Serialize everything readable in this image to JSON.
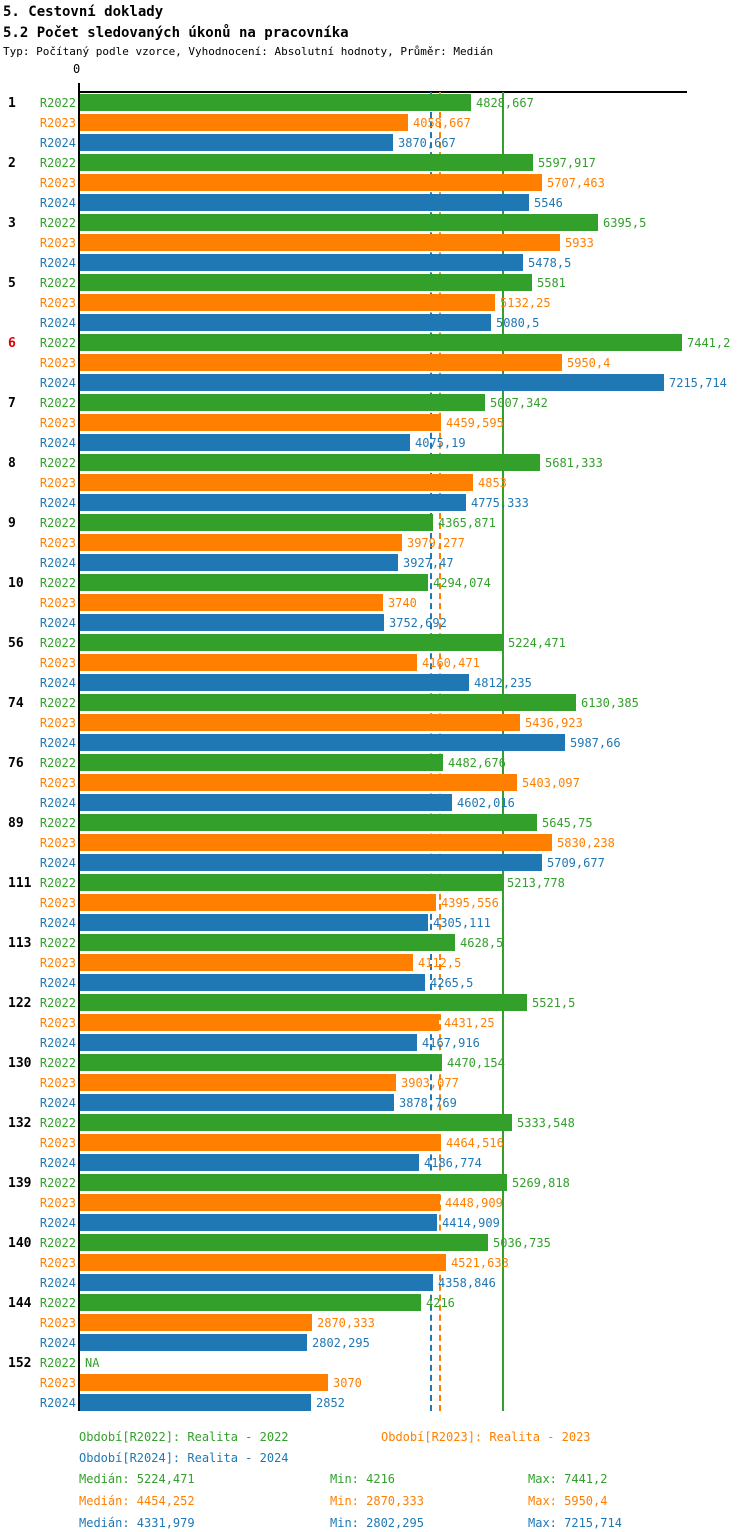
{
  "header": {
    "title": "5. Cestovní doklady",
    "subtitle": "5.2 Počet sledovaných úkonů na pracovníka",
    "meta": "Typ: Počítaný podle vzorce, Vyhodnocení: Absolutní hodnoty, Průměr: Medián"
  },
  "axis": {
    "zero_label": "0",
    "max": 7500
  },
  "colors": {
    "r2022": "#33A02C",
    "r2023": "#FF7F00",
    "r2024": "#1F78B4",
    "highlight_group": "#DD0000",
    "axis": "#000000"
  },
  "medians": [
    {
      "series": "R2022",
      "value": 5224.471,
      "color": "#33A02C",
      "style": "solid"
    },
    {
      "series": "R2023",
      "value": 4454.252,
      "color": "#FF7F00",
      "style": "dashed"
    },
    {
      "series": "R2024",
      "value": 4331.979,
      "color": "#1F78B4",
      "style": "dashed"
    }
  ],
  "groups": [
    {
      "id": "1",
      "highlight": false,
      "bars": [
        {
          "series": "R2022",
          "label": "4828,667",
          "value": 4828.667
        },
        {
          "series": "R2023",
          "label": "4058,667",
          "value": 4058.667
        },
        {
          "series": "R2024",
          "label": "3870,667",
          "value": 3870.667
        }
      ]
    },
    {
      "id": "2",
      "highlight": false,
      "bars": [
        {
          "series": "R2022",
          "label": "5597,917",
          "value": 5597.917
        },
        {
          "series": "R2023",
          "label": "5707,463",
          "value": 5707.463
        },
        {
          "series": "R2024",
          "label": "5546",
          "value": 5546
        }
      ]
    },
    {
      "id": "3",
      "highlight": false,
      "bars": [
        {
          "series": "R2022",
          "label": "6395,5",
          "value": 6395.5
        },
        {
          "series": "R2023",
          "label": "5933",
          "value": 5933
        },
        {
          "series": "R2024",
          "label": "5478,5",
          "value": 5478.5
        }
      ]
    },
    {
      "id": "5",
      "highlight": false,
      "bars": [
        {
          "series": "R2022",
          "label": "5581",
          "value": 5581
        },
        {
          "series": "R2023",
          "label": "5132,25",
          "value": 5132.25
        },
        {
          "series": "R2024",
          "label": "5080,5",
          "value": 5080.5
        }
      ]
    },
    {
      "id": "6",
      "highlight": true,
      "bars": [
        {
          "series": "R2022",
          "label": "7441,2",
          "value": 7441.2
        },
        {
          "series": "R2023",
          "label": "5950,4",
          "value": 5950.4
        },
        {
          "series": "R2024",
          "label": "7215,714",
          "value": 7215.714
        }
      ]
    },
    {
      "id": "7",
      "highlight": false,
      "bars": [
        {
          "series": "R2022",
          "label": "5007,342",
          "value": 5007.342
        },
        {
          "series": "R2023",
          "label": "4459,595",
          "value": 4459.595
        },
        {
          "series": "R2024",
          "label": "4075,19",
          "value": 4075.19
        }
      ]
    },
    {
      "id": "8",
      "highlight": false,
      "bars": [
        {
          "series": "R2022",
          "label": "5681,333",
          "value": 5681.333
        },
        {
          "series": "R2023",
          "label": "4853",
          "value": 4853
        },
        {
          "series": "R2024",
          "label": "4775,333",
          "value": 4775.333
        }
      ]
    },
    {
      "id": "9",
      "highlight": false,
      "bars": [
        {
          "series": "R2022",
          "label": "4365,871",
          "value": 4365.871
        },
        {
          "series": "R2023",
          "label": "3979,277",
          "value": 3979.277
        },
        {
          "series": "R2024",
          "label": "3927,47",
          "value": 3927.47
        }
      ]
    },
    {
      "id": "10",
      "highlight": false,
      "bars": [
        {
          "series": "R2022",
          "label": "4294,074",
          "value": 4294.074
        },
        {
          "series": "R2023",
          "label": "3740",
          "value": 3740
        },
        {
          "series": "R2024",
          "label": "3752,692",
          "value": 3752.692
        }
      ]
    },
    {
      "id": "56",
      "highlight": false,
      "bars": [
        {
          "series": "R2022",
          "label": "5224,471",
          "value": 5224.471
        },
        {
          "series": "R2023",
          "label": "4160,471",
          "value": 4160.471
        },
        {
          "series": "R2024",
          "label": "4812,235",
          "value": 4812.235
        }
      ]
    },
    {
      "id": "74",
      "highlight": false,
      "bars": [
        {
          "series": "R2022",
          "label": "6130,385",
          "value": 6130.385
        },
        {
          "series": "R2023",
          "label": "5436,923",
          "value": 5436.923
        },
        {
          "series": "R2024",
          "label": "5987,66",
          "value": 5987.66
        }
      ]
    },
    {
      "id": "76",
      "highlight": false,
      "bars": [
        {
          "series": "R2022",
          "label": "4482,676",
          "value": 4482.676
        },
        {
          "series": "R2023",
          "label": "5403,097",
          "value": 5403.097
        },
        {
          "series": "R2024",
          "label": "4602,016",
          "value": 4602.016
        }
      ]
    },
    {
      "id": "89",
      "highlight": false,
      "bars": [
        {
          "series": "R2022",
          "label": "5645,75",
          "value": 5645.75
        },
        {
          "series": "R2023",
          "label": "5830,238",
          "value": 5830.238
        },
        {
          "series": "R2024",
          "label": "5709,677",
          "value": 5709.677
        }
      ]
    },
    {
      "id": "111",
      "highlight": false,
      "bars": [
        {
          "series": "R2022",
          "label": "5213,778",
          "value": 5213.778
        },
        {
          "series": "R2023",
          "label": "4395,556",
          "value": 4395.556
        },
        {
          "series": "R2024",
          "label": "4305,111",
          "value": 4305.111
        }
      ]
    },
    {
      "id": "113",
      "highlight": false,
      "bars": [
        {
          "series": "R2022",
          "label": "4628,5",
          "value": 4628.5
        },
        {
          "series": "R2023",
          "label": "4112,5",
          "value": 4112.5
        },
        {
          "series": "R2024",
          "label": "4265,5",
          "value": 4265.5
        }
      ]
    },
    {
      "id": "122",
      "highlight": false,
      "bars": [
        {
          "series": "R2022",
          "label": "5521,5",
          "value": 5521.5
        },
        {
          "series": "R2023",
          "label": "4431,25",
          "value": 4431.25
        },
        {
          "series": "R2024",
          "label": "4167,916",
          "value": 4167.916
        }
      ]
    },
    {
      "id": "130",
      "highlight": false,
      "bars": [
        {
          "series": "R2022",
          "label": "4470,154",
          "value": 4470.154
        },
        {
          "series": "R2023",
          "label": "3903,077",
          "value": 3903.077
        },
        {
          "series": "R2024",
          "label": "3878,769",
          "value": 3878.769
        }
      ]
    },
    {
      "id": "132",
      "highlight": false,
      "bars": [
        {
          "series": "R2022",
          "label": "5333,548",
          "value": 5333.548
        },
        {
          "series": "R2023",
          "label": "4464,516",
          "value": 4464.516
        },
        {
          "series": "R2024",
          "label": "4186,774",
          "value": 4186.774
        }
      ]
    },
    {
      "id": "139",
      "highlight": false,
      "bars": [
        {
          "series": "R2022",
          "label": "5269,818",
          "value": 5269.818
        },
        {
          "series": "R2023",
          "label": "4448,909",
          "value": 4448.909
        },
        {
          "series": "R2024",
          "label": "4414,909",
          "value": 4414.909
        }
      ]
    },
    {
      "id": "140",
      "highlight": false,
      "bars": [
        {
          "series": "R2022",
          "label": "5036,735",
          "value": 5036.735
        },
        {
          "series": "R2023",
          "label": "4521,633",
          "value": 4521.633
        },
        {
          "series": "R2024",
          "label": "4358,846",
          "value": 4358.846
        }
      ]
    },
    {
      "id": "144",
      "highlight": false,
      "bars": [
        {
          "series": "R2022",
          "label": "4216",
          "value": 4216
        },
        {
          "series": "R2023",
          "label": "2870,333",
          "value": 2870.333
        },
        {
          "series": "R2024",
          "label": "2802,295",
          "value": 2802.295
        }
      ]
    },
    {
      "id": "152",
      "highlight": false,
      "bars": [
        {
          "series": "R2022",
          "label": "NA",
          "value": null
        },
        {
          "series": "R2023",
          "label": "3070",
          "value": 3070
        },
        {
          "series": "R2024",
          "label": "2852",
          "value": 2852
        }
      ]
    }
  ],
  "legend": {
    "periods": [
      {
        "text": "Období[R2022]: Realita - 2022"
      },
      {
        "text": "Období[R2023]: Realita - 2023"
      },
      {
        "text": "Období[R2024]: Realita - 2024"
      }
    ],
    "stats": [
      {
        "median": "Medián: 5224,471",
        "min": "Min: 4216",
        "max": "Max: 7441,2"
      },
      {
        "median": "Medián: 4454,252",
        "min": "Min: 2870,333",
        "max": "Max: 5950,4"
      },
      {
        "median": "Medián: 4331,979",
        "min": "Min: 2802,295",
        "max": "Max: 7215,714"
      }
    ]
  },
  "chart_data": {
    "type": "bar",
    "orientation": "horizontal",
    "title": "5.2 Počet sledovaných úkonů na pracovníka",
    "categories": [
      "1",
      "2",
      "3",
      "5",
      "6",
      "7",
      "8",
      "9",
      "10",
      "56",
      "74",
      "76",
      "89",
      "111",
      "113",
      "122",
      "130",
      "132",
      "139",
      "140",
      "144",
      "152"
    ],
    "series": [
      {
        "name": "R2022",
        "color": "#33A02C",
        "values": [
          4828.667,
          5597.917,
          6395.5,
          5581,
          7441.2,
          5007.342,
          5681.333,
          4365.871,
          4294.074,
          5224.471,
          6130.385,
          4482.676,
          5645.75,
          5213.778,
          4628.5,
          5521.5,
          4470.154,
          5333.548,
          5269.818,
          5036.735,
          4216,
          null
        ]
      },
      {
        "name": "R2023",
        "color": "#FF7F00",
        "values": [
          4058.667,
          5707.463,
          5933,
          5132.25,
          5950.4,
          4459.595,
          4853,
          3979.277,
          3740,
          4160.471,
          5436.923,
          5403.097,
          5830.238,
          4395.556,
          4112.5,
          4431.25,
          3903.077,
          4464.516,
          4448.909,
          4521.633,
          2870.333,
          3070
        ]
      },
      {
        "name": "R2024",
        "color": "#1F78B4",
        "values": [
          3870.667,
          5546,
          5478.5,
          5080.5,
          7215.714,
          4075.19,
          4775.333,
          3927.47,
          3752.692,
          4812.235,
          5987.66,
          4602.016,
          5709.677,
          4305.111,
          4265.5,
          4167.916,
          3878.769,
          4186.774,
          4414.909,
          4358.846,
          2802.295,
          2852
        ]
      }
    ],
    "xlim": [
      0,
      7500
    ],
    "grid": false,
    "medians": {
      "R2022": 5224.471,
      "R2023": 4454.252,
      "R2024": 4331.979
    },
    "min": {
      "R2022": 4216,
      "R2023": 2870.333,
      "R2024": 2802.295
    },
    "max": {
      "R2022": 7441.2,
      "R2023": 5950.4,
      "R2024": 7215.714
    }
  }
}
